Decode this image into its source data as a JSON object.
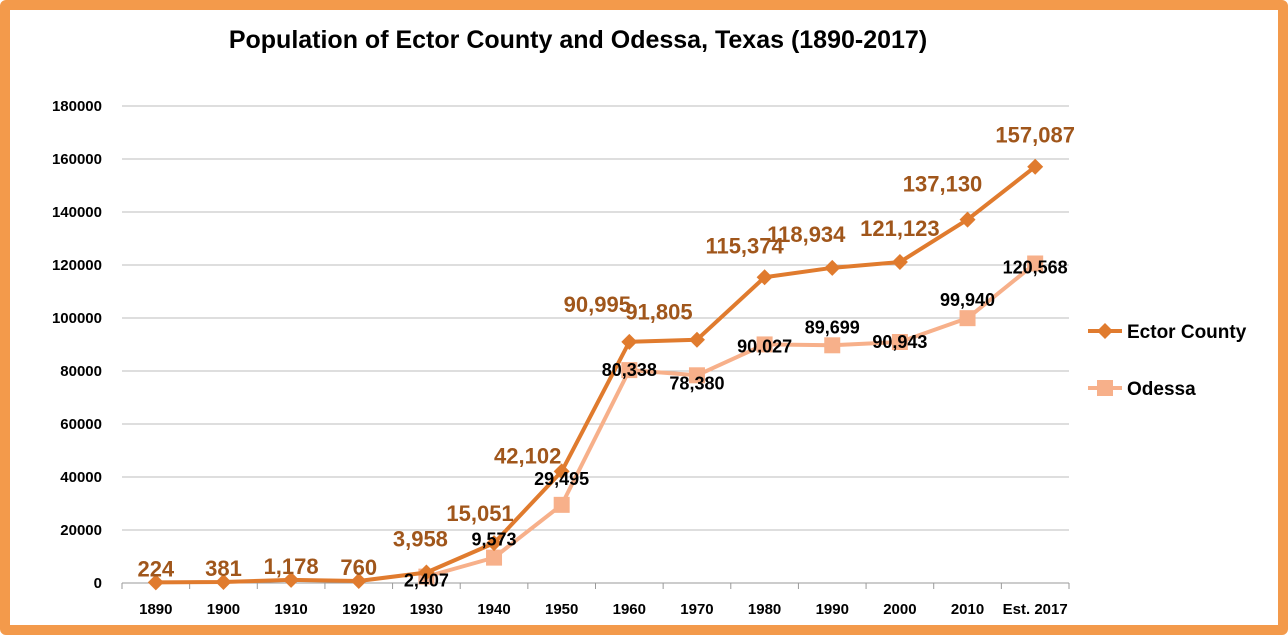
{
  "chart_data": {
    "type": "line",
    "title": "Population of Ector County and Odessa, Texas (1890-2017)",
    "categories": [
      "1890",
      "1900",
      "1910",
      "1920",
      "1930",
      "1940",
      "1950",
      "1960",
      "1970",
      "1980",
      "1990",
      "2000",
      "2010",
      "Est. 2017"
    ],
    "ylim": [
      0,
      180000
    ],
    "yticks": [
      "0",
      "20000",
      "40000",
      "60000",
      "80000",
      "100000",
      "120000",
      "140000",
      "160000",
      "180000"
    ],
    "grid": true,
    "legend_position": "right",
    "series": [
      {
        "name": "Ector County",
        "color": "#e07b2e",
        "label_color": "#a0561b",
        "marker": "diamond",
        "values": [
          224,
          381,
          1178,
          760,
          3958,
          15051,
          42102,
          90995,
          91805,
          115374,
          118934,
          121123,
          137130,
          157087
        ],
        "labels": [
          "224",
          "381",
          "1,178",
          "760",
          "3,958",
          "15,051",
          "42,102",
          "90,995",
          "91,805",
          "115,374",
          "118,934",
          "121,123",
          "137,130",
          "157,087"
        ]
      },
      {
        "name": "Odessa",
        "color": "#f7b08a",
        "label_color": "#000000",
        "marker": "square",
        "values": [
          null,
          null,
          null,
          null,
          2407,
          9573,
          29495,
          80338,
          78380,
          90027,
          89699,
          90943,
          99940,
          120568
        ],
        "labels": [
          "",
          "",
          "",
          "",
          "2,407",
          "9,573",
          "29,495",
          "80,338",
          "78,380",
          "90,027",
          "89,699",
          "90,943",
          "99,940",
          "120,568"
        ]
      }
    ]
  }
}
